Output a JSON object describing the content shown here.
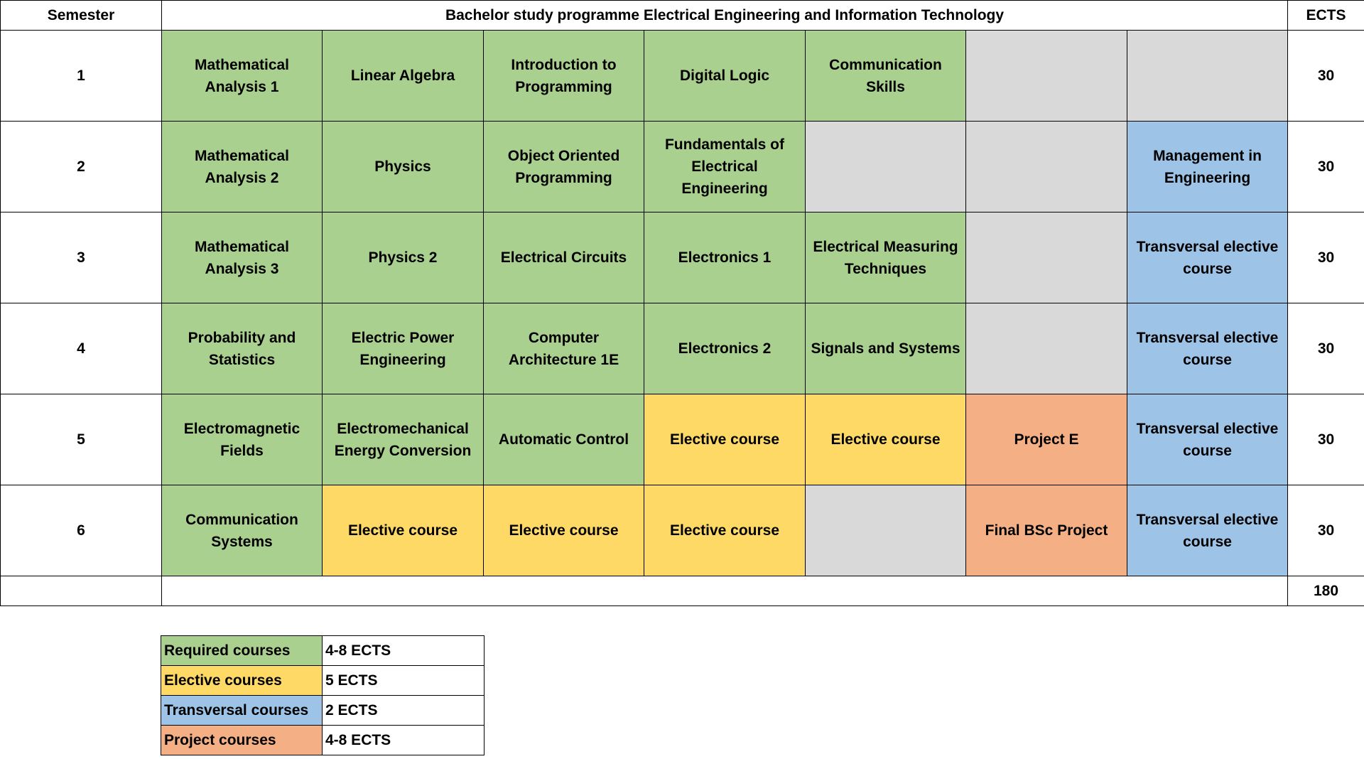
{
  "header": {
    "semester_label": "Semester",
    "programme_title": "Bachelor study programme Electrical Engineering and Information Technology",
    "ects_label": "ECTS"
  },
  "semesters": [
    {
      "number": "1",
      "ects": "30",
      "courses": [
        {
          "name": "Mathematical Analysis 1",
          "type": "required"
        },
        {
          "name": "Linear Algebra",
          "type": "required"
        },
        {
          "name": "Introduction to Programming",
          "type": "required"
        },
        {
          "name": "Digital Logic",
          "type": "required"
        },
        {
          "name": "Communication Skills",
          "type": "required"
        },
        {
          "name": "",
          "type": "empty"
        },
        {
          "name": "",
          "type": "empty"
        }
      ]
    },
    {
      "number": "2",
      "ects": "30",
      "courses": [
        {
          "name": "Mathematical Analysis 2",
          "type": "required"
        },
        {
          "name": "Physics",
          "type": "required"
        },
        {
          "name": "Object Oriented Programming",
          "type": "required"
        },
        {
          "name": "Fundamentals of Electrical Engineering",
          "type": "required"
        },
        {
          "name": "",
          "type": "empty"
        },
        {
          "name": "",
          "type": "empty"
        },
        {
          "name": "Management in Engineering",
          "type": "transversal"
        }
      ]
    },
    {
      "number": "3",
      "ects": "30",
      "courses": [
        {
          "name": "Mathematical Analysis 3",
          "type": "required"
        },
        {
          "name": "Physics 2",
          "type": "required"
        },
        {
          "name": "Electrical Circuits",
          "type": "required"
        },
        {
          "name": "Electronics 1",
          "type": "required"
        },
        {
          "name": "Electrical Measuring Techniques",
          "type": "required"
        },
        {
          "name": "",
          "type": "empty"
        },
        {
          "name": "Transversal elective course",
          "type": "transversal"
        }
      ]
    },
    {
      "number": "4",
      "ects": "30",
      "courses": [
        {
          "name": "Probability and Statistics",
          "type": "required"
        },
        {
          "name": "Electric Power Engineering",
          "type": "required"
        },
        {
          "name": "Computer Architecture 1E",
          "type": "required"
        },
        {
          "name": "Electronics 2",
          "type": "required"
        },
        {
          "name": "Signals and Systems",
          "type": "required"
        },
        {
          "name": "",
          "type": "empty"
        },
        {
          "name": "Transversal elective course",
          "type": "transversal"
        }
      ]
    },
    {
      "number": "5",
      "ects": "30",
      "courses": [
        {
          "name": "Electromagnetic Fields",
          "type": "required"
        },
        {
          "name": "Electromechanical Energy Conversion",
          "type": "required"
        },
        {
          "name": "Automatic Control",
          "type": "required"
        },
        {
          "name": "Elective course",
          "type": "elective"
        },
        {
          "name": "Elective course",
          "type": "elective"
        },
        {
          "name": "Project E",
          "type": "project"
        },
        {
          "name": "Transversal elective course",
          "type": "transversal"
        }
      ]
    },
    {
      "number": "6",
      "ects": "30",
      "courses": [
        {
          "name": "Communication Systems",
          "type": "required"
        },
        {
          "name": "Elective course",
          "type": "elective"
        },
        {
          "name": "Elective course",
          "type": "elective"
        },
        {
          "name": "Elective course",
          "type": "elective"
        },
        {
          "name": "",
          "type": "empty"
        },
        {
          "name": "Final BSc Project",
          "type": "project"
        },
        {
          "name": "Transversal elective course",
          "type": "transversal"
        }
      ]
    }
  ],
  "total": {
    "ects": "180"
  },
  "legend": [
    {
      "label": "Required courses",
      "ects": "4-8 ECTS",
      "type": "required"
    },
    {
      "label": "Elective courses",
      "ects": "5 ECTS",
      "type": "elective"
    },
    {
      "label": "Transversal courses",
      "ects": "2 ECTS",
      "type": "transversal"
    },
    {
      "label": "Project courses",
      "ects": "4-8 ECTS",
      "type": "project"
    }
  ],
  "colors": {
    "required": "#a9d08e",
    "elective": "#ffd966",
    "transversal": "#9dc3e6",
    "project": "#f4b084",
    "empty": "#d9d9d9"
  }
}
